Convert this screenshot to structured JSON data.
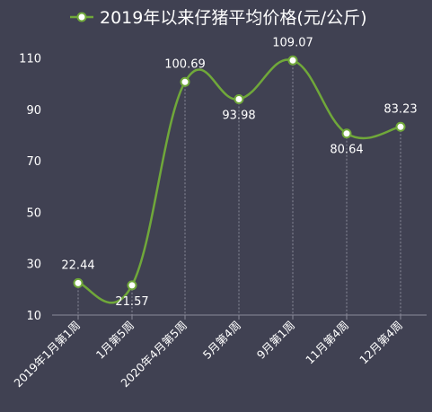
{
  "chart_data": {
    "type": "line",
    "title": "2019年以来仔猪平均价格(元/公斤)",
    "legend_position": "top-center",
    "categories": [
      "2019年1月第1周",
      "1月第5周",
      "2020年4月第5周",
      "5月第4周",
      "9月第1周",
      "11月第4周",
      "12月第4周"
    ],
    "series": [
      {
        "name": "2019年以来仔猪平均价格(元/公斤)",
        "values": [
          22.44,
          21.57,
          100.69,
          93.98,
          109.07,
          80.64,
          83.23
        ],
        "labels": [
          "22.44",
          "21.57",
          "100.69",
          "93.98",
          "109.07",
          "80.64",
          "83.23"
        ],
        "color": "#70a83a"
      }
    ],
    "yticks": [
      "10",
      "30",
      "50",
      "70",
      "90",
      "110"
    ],
    "ylim": [
      10,
      120
    ],
    "grid": false,
    "colors": {
      "background": "#404152",
      "line": "#70a83a",
      "text": "#ffffff",
      "drop_line": "#8a8b9a",
      "marker_fill": "#ffffff"
    }
  }
}
